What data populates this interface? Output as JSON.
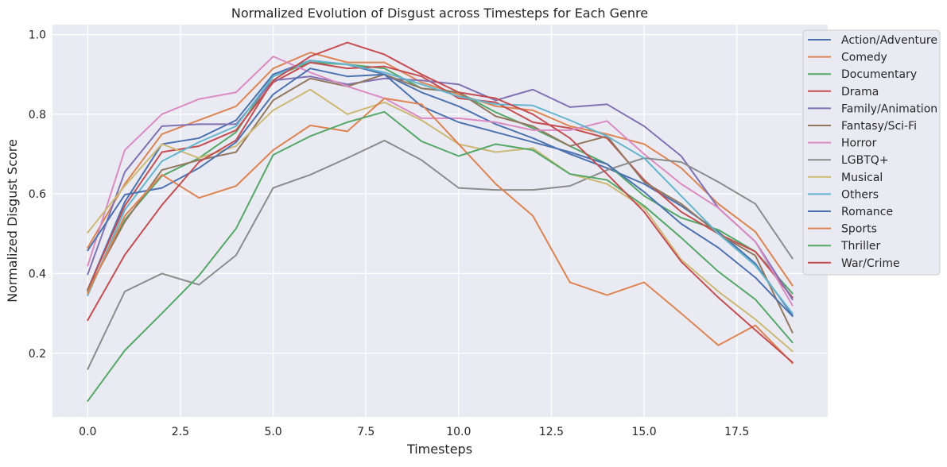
{
  "chart_data": {
    "type": "line",
    "title": "Normalized Evolution of Disgust across Timesteps for Each Genre",
    "xlabel": "Timesteps",
    "ylabel": "Normalized Disgust Score",
    "xlim": [
      -0.95,
      19.95
    ],
    "ylim": [
      0.04,
      1.025
    ],
    "x_ticks": [
      0,
      2.5,
      5,
      7.5,
      10,
      12.5,
      15,
      17.5
    ],
    "x_tick_labels": [
      "0.0",
      "2.5",
      "5.0",
      "7.5",
      "10.0",
      "12.5",
      "15.0",
      "17.5"
    ],
    "y_ticks": [
      0.2,
      0.4,
      0.6,
      0.8,
      1.0
    ],
    "y_tick_labels": [
      "0.2",
      "0.4",
      "0.6",
      "0.8",
      "1.0"
    ],
    "grid": true,
    "legend_position": "upper-right-outside",
    "x": [
      0,
      1,
      2,
      3,
      4,
      5,
      6,
      7,
      8,
      9,
      10,
      11,
      12,
      13,
      14,
      15,
      16,
      17,
      18,
      19
    ],
    "series": [
      {
        "name": "Action/Adventure",
        "color": "#4C72B0",
        "values": [
          0.36,
          0.58,
          0.725,
          0.74,
          0.785,
          0.9,
          0.935,
          0.925,
          0.9,
          0.855,
          0.82,
          0.775,
          0.74,
          0.7,
          0.665,
          0.625,
          0.57,
          0.505,
          0.425,
          0.295
        ]
      },
      {
        "name": "Comedy",
        "color": "#DD8452",
        "values": [
          0.465,
          0.625,
          0.75,
          0.785,
          0.82,
          0.915,
          0.955,
          0.93,
          0.93,
          0.88,
          0.85,
          0.82,
          0.81,
          0.77,
          0.75,
          0.725,
          0.665,
          0.575,
          0.505,
          0.37
        ]
      },
      {
        "name": "Documentary",
        "color": "#55A868",
        "values": [
          0.355,
          0.535,
          0.645,
          0.69,
          0.755,
          0.895,
          0.93,
          0.925,
          0.915,
          0.865,
          0.855,
          0.805,
          0.765,
          0.72,
          0.675,
          0.595,
          0.54,
          0.51,
          0.455,
          0.35
        ]
      },
      {
        "name": "Drama",
        "color": "#C44E52",
        "values": [
          0.36,
          0.57,
          0.705,
          0.72,
          0.76,
          0.88,
          0.93,
          0.915,
          0.92,
          0.895,
          0.84,
          0.83,
          0.78,
          0.765,
          0.74,
          0.635,
          0.555,
          0.5,
          0.455,
          0.34
        ]
      },
      {
        "name": "Family/Animation",
        "color": "#8172B3",
        "values": [
          0.398,
          0.655,
          0.77,
          0.775,
          0.775,
          0.885,
          0.895,
          0.875,
          0.89,
          0.885,
          0.875,
          0.835,
          0.862,
          0.818,
          0.825,
          0.77,
          0.695,
          0.565,
          0.48,
          0.335
        ]
      },
      {
        "name": "Fantasy/Sci-Fi",
        "color": "#937860",
        "values": [
          0.358,
          0.53,
          0.66,
          0.685,
          0.705,
          0.835,
          0.89,
          0.87,
          0.9,
          0.865,
          0.855,
          0.795,
          0.77,
          0.72,
          0.745,
          0.63,
          0.575,
          0.5,
          0.445,
          0.252
        ]
      },
      {
        "name": "Horror",
        "color": "#DA8BC3",
        "values": [
          0.42,
          0.71,
          0.8,
          0.838,
          0.855,
          0.945,
          0.905,
          0.87,
          0.84,
          0.79,
          0.79,
          0.78,
          0.76,
          0.76,
          0.783,
          0.7,
          0.625,
          0.565,
          0.48,
          0.32
        ]
      },
      {
        "name": "LGBTQ+",
        "color": "#8C8C8C",
        "values": [
          0.16,
          0.355,
          0.4,
          0.372,
          0.446,
          0.615,
          0.648,
          0.69,
          0.734,
          0.685,
          0.615,
          0.61,
          0.61,
          0.62,
          0.66,
          0.69,
          0.68,
          0.63,
          0.575,
          0.438
        ]
      },
      {
        "name": "Musical",
        "color": "#CCB974",
        "values": [
          0.503,
          0.62,
          0.725,
          0.69,
          0.72,
          0.81,
          0.862,
          0.8,
          0.83,
          0.785,
          0.725,
          0.705,
          0.715,
          0.65,
          0.625,
          0.565,
          0.435,
          0.355,
          0.285,
          0.205
        ]
      },
      {
        "name": "Others",
        "color": "#64B5CD",
        "values": [
          0.345,
          0.56,
          0.682,
          0.73,
          0.77,
          0.895,
          0.935,
          0.925,
          0.905,
          0.875,
          0.845,
          0.825,
          0.822,
          0.785,
          0.745,
          0.69,
          0.595,
          0.5,
          0.42,
          0.3
        ]
      },
      {
        "name": "Romance",
        "color": "#4C72B0",
        "values": [
          0.458,
          0.598,
          0.615,
          0.665,
          0.73,
          0.85,
          0.915,
          0.895,
          0.9,
          0.82,
          0.78,
          0.755,
          0.73,
          0.705,
          0.675,
          0.605,
          0.525,
          0.465,
          0.39,
          0.293
        ]
      },
      {
        "name": "Sports",
        "color": "#DD8452",
        "values": [
          0.35,
          0.545,
          0.648,
          0.59,
          0.62,
          0.71,
          0.772,
          0.757,
          0.84,
          0.825,
          0.725,
          0.625,
          0.545,
          0.378,
          0.346,
          0.378,
          0.3,
          0.22,
          0.27,
          0.175
        ]
      },
      {
        "name": "Thriller",
        "color": "#55A868",
        "values": [
          0.08,
          0.207,
          0.3,
          0.395,
          0.513,
          0.698,
          0.745,
          0.78,
          0.806,
          0.732,
          0.695,
          0.725,
          0.71,
          0.65,
          0.635,
          0.57,
          0.49,
          0.405,
          0.335,
          0.227
        ]
      },
      {
        "name": "War/Crime",
        "color": "#C44E52",
        "values": [
          0.283,
          0.447,
          0.572,
          0.68,
          0.735,
          0.885,
          0.945,
          0.98,
          0.95,
          0.9,
          0.855,
          0.84,
          0.8,
          0.74,
          0.65,
          0.555,
          0.43,
          0.34,
          0.258,
          0.177
        ]
      }
    ]
  }
}
